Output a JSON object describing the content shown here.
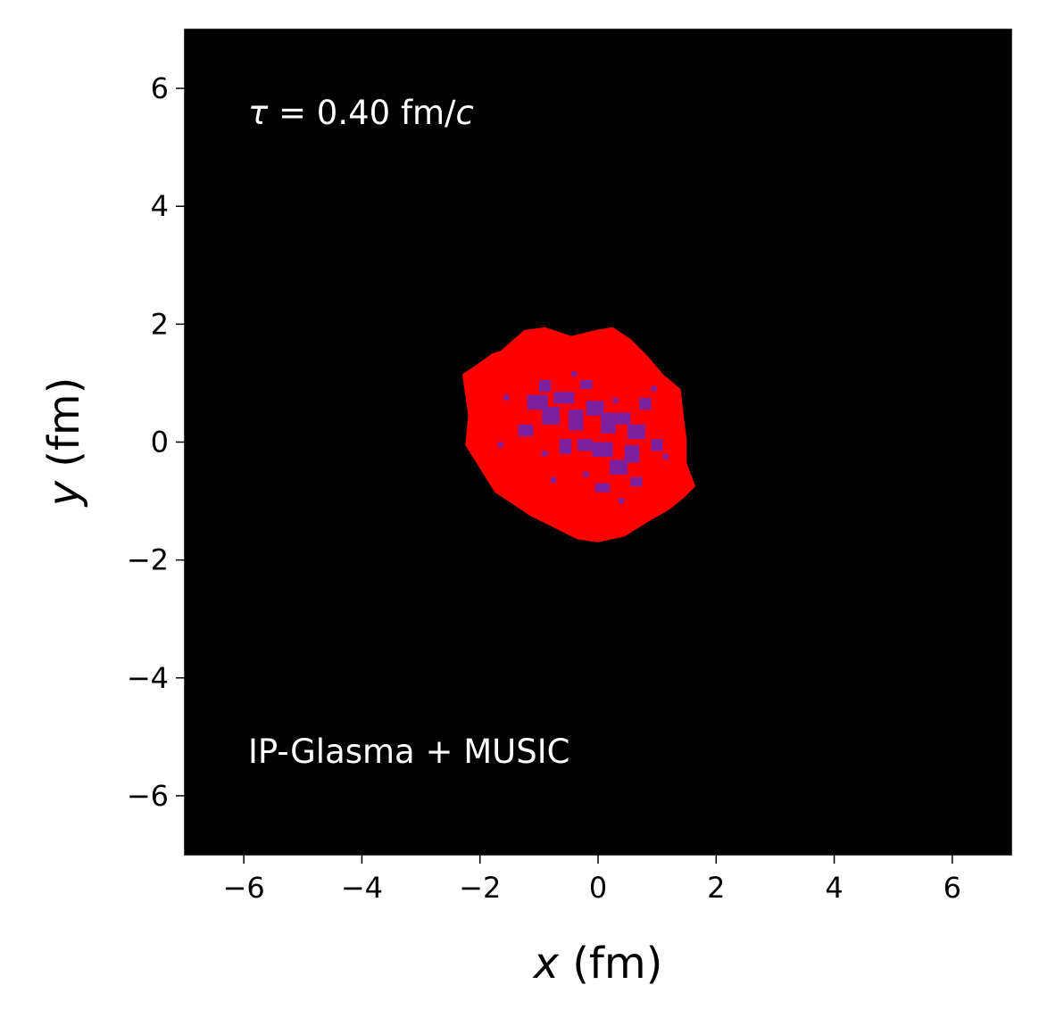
{
  "chart_data": {
    "type": "heatmap",
    "title": "",
    "xlabel_var": "x",
    "xlabel_unit": " (fm)",
    "ylabel_var": "y",
    "ylabel_unit": " (fm)",
    "xlim": [
      -7,
      7
    ],
    "ylim": [
      -7,
      7
    ],
    "x_ticks": [
      -6,
      -4,
      -2,
      0,
      2,
      4,
      6
    ],
    "y_ticks": [
      -6,
      -4,
      -2,
      0,
      2,
      4,
      6
    ],
    "x_tick_labels": [
      "−6",
      "−4",
      "−2",
      "0",
      "2",
      "4",
      "6"
    ],
    "y_tick_labels": [
      "−6",
      "−4",
      "−2",
      "0",
      "2",
      "4",
      "6"
    ],
    "background_color": "#000000",
    "blob_color": "#ff0000",
    "core_color": "#7a1f9e",
    "annotations": {
      "time_symbol": "τ",
      "time_value": " = 0.40 fm/",
      "time_unit_c": "c",
      "model": "IP-Glasma + MUSIC"
    },
    "blob_outline": [
      [
        -1.65,
        1.55
      ],
      [
        -1.25,
        1.9
      ],
      [
        -0.9,
        1.95
      ],
      [
        -0.45,
        1.8
      ],
      [
        -0.05,
        1.9
      ],
      [
        0.25,
        1.95
      ],
      [
        0.55,
        1.75
      ],
      [
        0.85,
        1.45
      ],
      [
        1.1,
        1.15
      ],
      [
        1.4,
        0.9
      ],
      [
        1.45,
        0.45
      ],
      [
        1.5,
        0.05
      ],
      [
        1.5,
        -0.35
      ],
      [
        1.65,
        -0.75
      ],
      [
        1.45,
        -0.95
      ],
      [
        1.2,
        -1.15
      ],
      [
        0.85,
        -1.35
      ],
      [
        0.45,
        -1.6
      ],
      [
        0.0,
        -1.7
      ],
      [
        -0.35,
        -1.65
      ],
      [
        -0.75,
        -1.45
      ],
      [
        -1.15,
        -1.25
      ],
      [
        -1.45,
        -1.05
      ],
      [
        -1.75,
        -0.85
      ],
      [
        -2.0,
        -0.45
      ],
      [
        -2.25,
        -0.05
      ],
      [
        -2.2,
        0.45
      ],
      [
        -2.3,
        1.15
      ],
      [
        -2.0,
        1.35
      ],
      [
        -1.8,
        1.5
      ]
    ],
    "core_patches": [
      [
        -1.2,
        0.55,
        0.35,
        0.25
      ],
      [
        -0.95,
        0.3,
        0.3,
        0.3
      ],
      [
        -0.75,
        0.65,
        0.35,
        0.2
      ],
      [
        -0.5,
        0.2,
        0.25,
        0.35
      ],
      [
        -0.2,
        0.45,
        0.3,
        0.25
      ],
      [
        0.05,
        0.15,
        0.25,
        0.35
      ],
      [
        0.3,
        0.3,
        0.25,
        0.2
      ],
      [
        0.5,
        0.05,
        0.3,
        0.25
      ],
      [
        -0.1,
        -0.25,
        0.35,
        0.25
      ],
      [
        0.2,
        -0.55,
        0.3,
        0.25
      ],
      [
        0.45,
        -0.35,
        0.25,
        0.3
      ],
      [
        -0.35,
        -0.15,
        0.25,
        0.2
      ],
      [
        -1.35,
        0.1,
        0.25,
        0.2
      ],
      [
        -0.65,
        -0.2,
        0.2,
        0.25
      ],
      [
        -1.0,
        0.85,
        0.2,
        0.2
      ],
      [
        0.7,
        0.55,
        0.2,
        0.2
      ],
      [
        -0.3,
        0.9,
        0.2,
        0.15
      ],
      [
        0.9,
        -0.15,
        0.2,
        0.2
      ],
      [
        -0.05,
        -0.85,
        0.25,
        0.15
      ],
      [
        0.55,
        -0.75,
        0.2,
        0.15
      ]
    ],
    "speckles": [
      [
        -1.6,
        0.8
      ],
      [
        -1.45,
        0.95
      ],
      [
        -1.55,
        0.35
      ],
      [
        -1.7,
        0.0
      ],
      [
        -1.4,
        -0.3
      ],
      [
        -1.1,
        -0.5
      ],
      [
        -0.8,
        -0.6
      ],
      [
        -0.5,
        -0.75
      ],
      [
        -0.2,
        -1.0
      ],
      [
        0.35,
        -0.95
      ],
      [
        0.75,
        -0.95
      ],
      [
        1.0,
        -0.6
      ],
      [
        1.1,
        -0.2
      ],
      [
        1.15,
        0.2
      ],
      [
        1.05,
        0.6
      ],
      [
        0.9,
        0.95
      ],
      [
        0.45,
        0.95
      ],
      [
        0.1,
        1.15
      ],
      [
        -0.45,
        1.2
      ],
      [
        -0.85,
        1.15
      ],
      [
        -1.25,
        1.2
      ],
      [
        0.25,
        0.75
      ],
      [
        -0.6,
        0.45
      ],
      [
        0.8,
        0.2
      ],
      [
        -0.25,
        -0.5
      ],
      [
        0.1,
        0.55
      ],
      [
        0.65,
        -0.55
      ],
      [
        -0.95,
        -0.15
      ],
      [
        1.25,
        -0.45
      ],
      [
        -1.8,
        1.25
      ]
    ]
  }
}
